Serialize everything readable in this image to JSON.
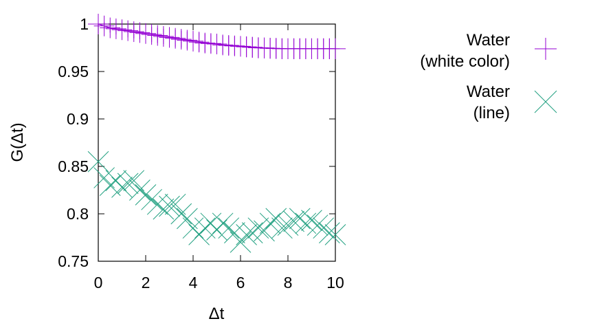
{
  "chart_data": {
    "type": "scatter",
    "title": "",
    "xlabel": "Δt",
    "ylabel": "G(Δt)",
    "xlim": [
      0,
      10
    ],
    "ylim": [
      0.75,
      1.0
    ],
    "xticks": [
      0,
      2,
      4,
      6,
      8,
      10
    ],
    "xtick_labels": [
      "0",
      "2",
      "4",
      "6",
      "8",
      "10"
    ],
    "yticks": [
      0.75,
      0.8,
      0.85,
      0.9,
      0.95,
      1.0
    ],
    "ytick_labels": [
      "0.75",
      "0.8",
      "0.85",
      "0.9",
      "0.95",
      "1"
    ],
    "grid": false,
    "legend_placement": "right",
    "series": [
      {
        "name_lines": [
          "Water",
          "(white color)"
        ],
        "marker": "plus",
        "color": "#9400d3",
        "x": [
          0,
          0.25,
          0.5,
          0.75,
          1,
          1.25,
          1.5,
          1.75,
          2,
          2.25,
          2.5,
          2.75,
          3,
          3.25,
          3.5,
          3.75,
          4,
          4.25,
          4.5,
          4.75,
          5,
          5.25,
          5.5,
          5.75,
          6,
          6.25,
          6.5,
          6.75,
          7,
          7.25,
          7.5,
          7.75,
          8,
          8.25,
          8.5,
          8.75,
          9,
          9.25,
          9.5,
          9.75,
          10
        ],
        "y": [
          1.0,
          0.998,
          0.996,
          0.995,
          0.994,
          0.993,
          0.992,
          0.991,
          0.99,
          0.989,
          0.988,
          0.987,
          0.986,
          0.985,
          0.984,
          0.983,
          0.982,
          0.981,
          0.98,
          0.9795,
          0.979,
          0.978,
          0.9775,
          0.977,
          0.9765,
          0.976,
          0.9755,
          0.975,
          0.9748,
          0.9745,
          0.9743,
          0.974,
          0.974,
          0.974,
          0.974,
          0.974,
          0.974,
          0.974,
          0.974,
          0.974,
          0.974
        ],
        "errors": [
          0.0,
          0.004,
          0.005,
          0.006,
          0.006,
          0.007,
          0.007,
          0.007,
          0.008,
          0.008,
          0.008,
          0.008,
          0.009,
          0.009,
          0.009,
          0.009,
          0.009,
          0.01,
          0.01,
          0.01,
          0.01,
          0.01,
          0.01,
          0.01,
          0.01,
          0.011,
          0.011,
          0.011,
          0.011,
          0.011,
          0.011,
          0.011,
          0.011,
          0.011,
          0.011,
          0.011,
          0.011,
          0.011,
          0.011,
          0.011,
          0.011
        ]
      },
      {
        "name_lines": [
          "Water",
          "(line)"
        ],
        "marker": "cross",
        "color": "#20a080",
        "x": [
          0,
          0.25,
          0.5,
          0.75,
          1,
          1.25,
          1.5,
          1.75,
          2,
          2.25,
          2.5,
          2.75,
          3,
          3.25,
          3.5,
          3.75,
          4,
          4.25,
          4.5,
          4.75,
          5,
          5.25,
          5.5,
          5.75,
          6,
          6.25,
          6.5,
          6.75,
          7,
          7.25,
          7.5,
          7.75,
          8,
          8.25,
          8.5,
          8.75,
          9,
          9.25,
          9.5,
          9.75,
          10
        ],
        "y": [
          0.855,
          0.838,
          0.83,
          0.835,
          0.828,
          0.832,
          0.835,
          0.825,
          0.82,
          0.815,
          0.81,
          0.805,
          0.808,
          0.81,
          0.8,
          0.795,
          0.785,
          0.778,
          0.785,
          0.79,
          0.783,
          0.79,
          0.785,
          0.78,
          0.77,
          0.778,
          0.78,
          0.785,
          0.782,
          0.79,
          0.795,
          0.785,
          0.788,
          0.792,
          0.795,
          0.79,
          0.793,
          0.788,
          0.785,
          0.78,
          0.778
        ]
      }
    ]
  }
}
